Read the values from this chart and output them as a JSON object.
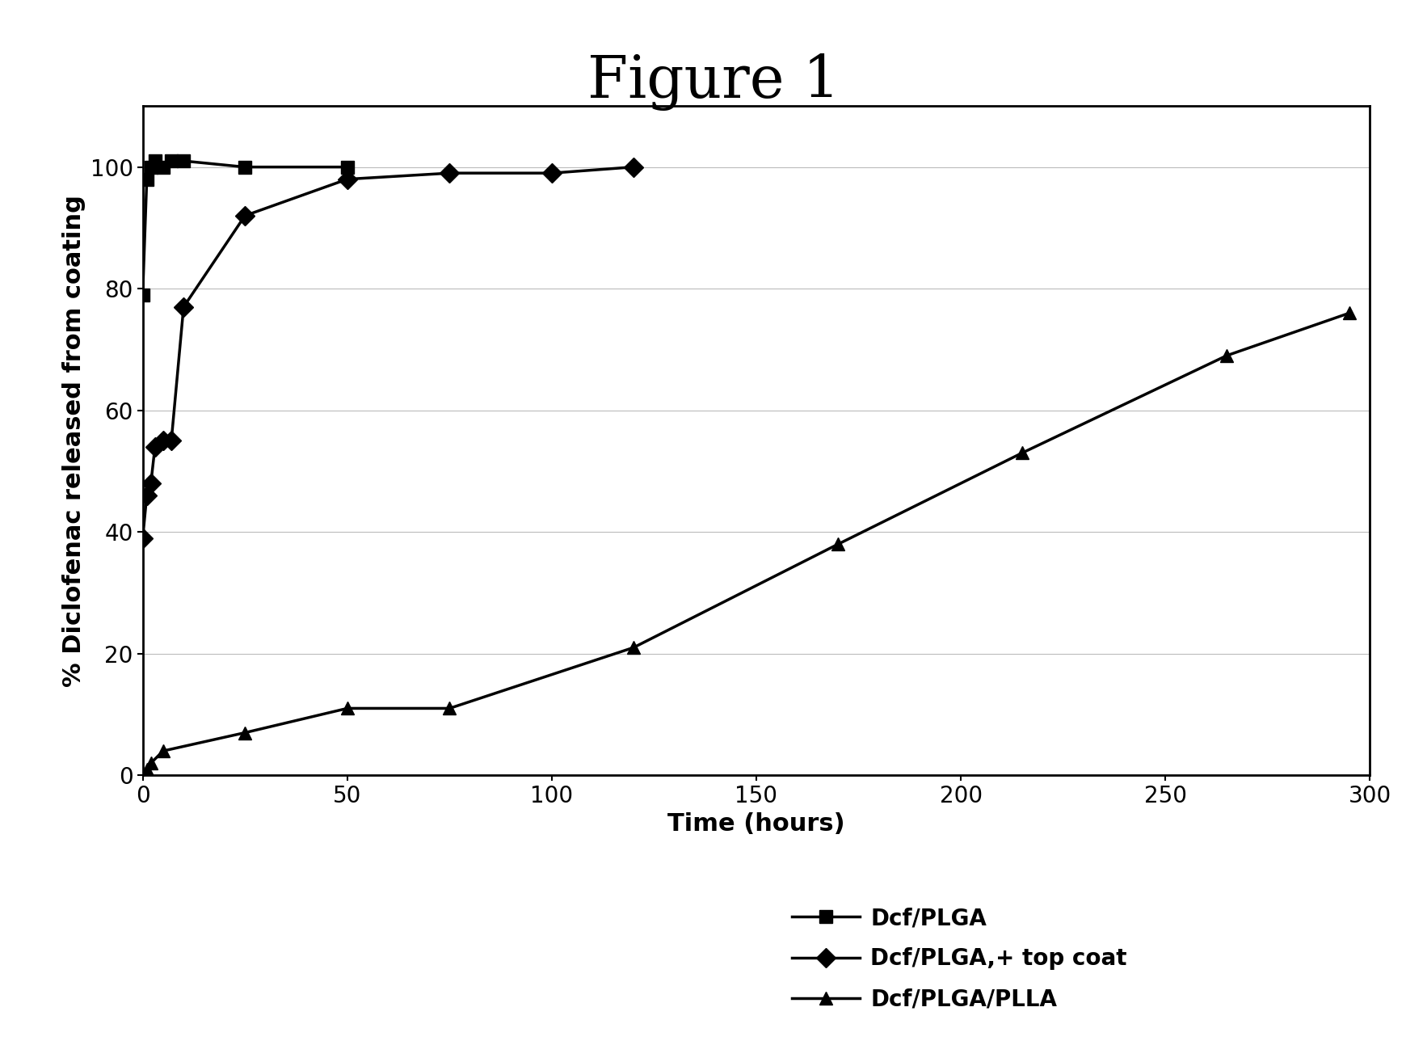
{
  "title": "Figure 1",
  "xlabel": "Time (hours)",
  "ylabel": "% Diclofenac released from coating",
  "xlim": [
    0,
    300
  ],
  "ylim": [
    0,
    110
  ],
  "xticks": [
    0,
    50,
    100,
    150,
    200,
    250,
    300
  ],
  "yticks": [
    0,
    20,
    40,
    60,
    80,
    100
  ],
  "series": [
    {
      "label": "Dcf/PLGA",
      "marker": "s",
      "x": [
        0,
        1,
        2,
        3,
        5,
        7,
        10,
        25,
        50
      ],
      "y": [
        79,
        98,
        100,
        101,
        100,
        101,
        101,
        100,
        100
      ]
    },
    {
      "label": "Dcf/PLGA,+ top coat",
      "marker": "D",
      "x": [
        0,
        1,
        2,
        3,
        5,
        7,
        10,
        25,
        50,
        75,
        100,
        120
      ],
      "y": [
        39,
        46,
        48,
        54,
        55,
        55,
        77,
        92,
        98,
        99,
        99,
        100
      ]
    },
    {
      "label": "Dcf/PLGA/PLLA",
      "marker": "^",
      "x": [
        0,
        1,
        2,
        5,
        25,
        50,
        75,
        120,
        170,
        215,
        265,
        295
      ],
      "y": [
        0,
        1,
        2,
        4,
        7,
        11,
        11,
        21,
        38,
        53,
        69,
        76
      ]
    }
  ],
  "line_color": "#000000",
  "background_color": "#ffffff",
  "title_fontsize": 52,
  "axis_label_fontsize": 22,
  "tick_fontsize": 20,
  "legend_fontsize": 20,
  "marker_size": 12,
  "line_width": 2.5
}
